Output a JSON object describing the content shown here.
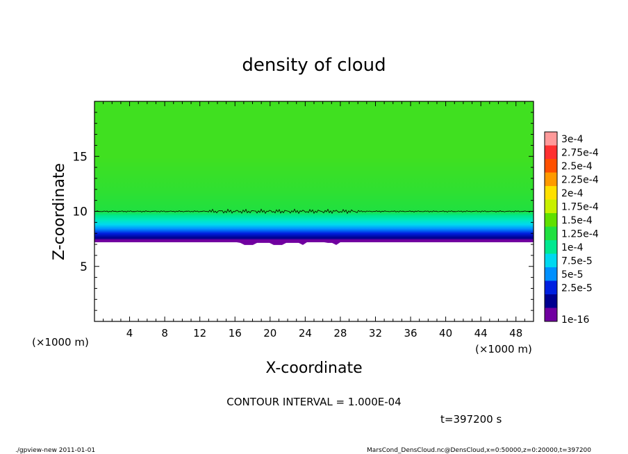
{
  "chart_data": {
    "type": "heatmap",
    "title": "density of cloud",
    "xlabel": "X-coordinate",
    "ylabel": "Z-coordinate",
    "xunit_left": "(×1000 m)",
    "xunit_right": "(×1000 m)",
    "xlim": [
      0,
      50
    ],
    "ylim": [
      0,
      20
    ],
    "x_ticks": [
      4,
      8,
      12,
      16,
      20,
      24,
      28,
      32,
      36,
      40,
      44,
      48
    ],
    "y_ticks": [
      5,
      10,
      15
    ],
    "contour_interval": "CONTOUR INTERVAL = 1.000E-04",
    "time": "t=397200 s",
    "colorbar": {
      "labels": [
        "3e-4",
        "2.75e-4",
        "2.5e-4",
        "2.25e-4",
        "2e-4",
        "1.75e-4",
        "1.5e-4",
        "1.25e-4",
        "1e-4",
        "7.5e-5",
        "5e-5",
        "2.5e-5",
        "1e-16"
      ],
      "colors": [
        "#ff9a9a",
        "#ff3030",
        "#ff5000",
        "#ff9a00",
        "#ffe000",
        "#c8f000",
        "#60e000",
        "#20e040",
        "#00e890",
        "#00d8f0",
        "#0090ff",
        "#0020e0",
        "#000090",
        "#7000a0"
      ]
    },
    "profile": {
      "description_levels_z": [
        7.2,
        7.6,
        8.0,
        8.4,
        8.8,
        9.2,
        9.6,
        10.0,
        12.0,
        15.0,
        20.0
      ],
      "colors_by_level": [
        "#7000a0",
        "#000090",
        "#0020e0",
        "#0090ff",
        "#00d8f0",
        "#00e8c0",
        "#00e890",
        "#20e040",
        "#30e030",
        "#40e020",
        "#40e020"
      ]
    },
    "contour_level_z": 10.0
  },
  "footer": {
    "left": "./gpview-new   2011-01-01",
    "right": "MarsCond_DensCloud.nc@DensCloud,x=0:50000,z=0:20000,t=397200"
  }
}
